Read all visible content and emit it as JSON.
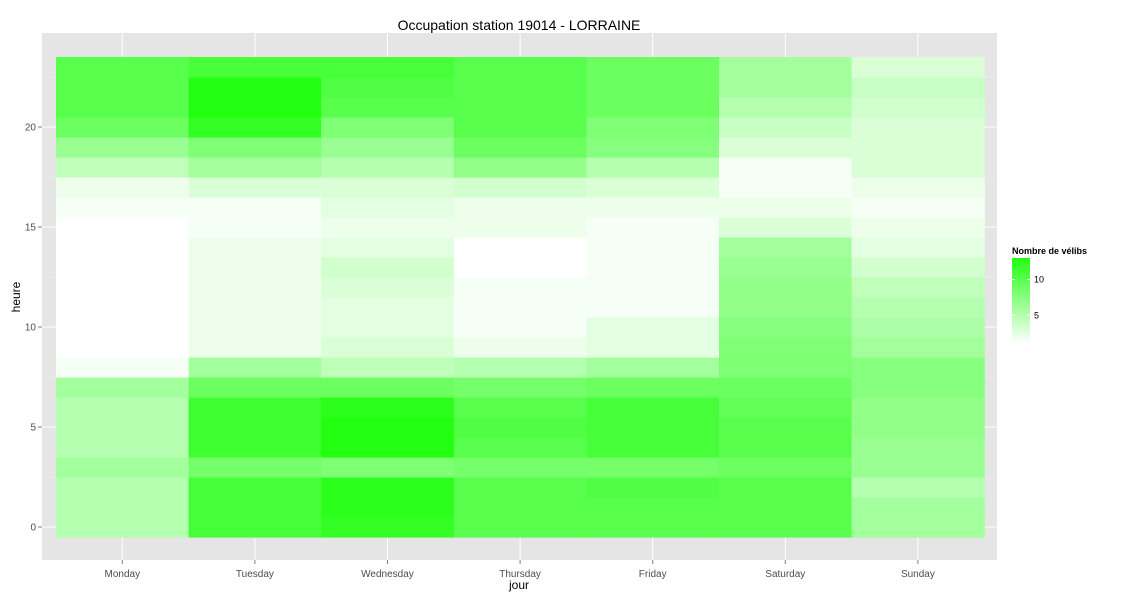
{
  "chart_data": {
    "type": "heatmap",
    "title": "Occupation station 19014 - LORRAINE",
    "xlabel": "jour",
    "ylabel": "heure",
    "x_categories": [
      "Monday",
      "Tuesday",
      "Wednesday",
      "Thursday",
      "Friday",
      "Saturday",
      "Sunday"
    ],
    "y_hours": [
      0,
      1,
      2,
      3,
      4,
      5,
      6,
      7,
      8,
      9,
      10,
      11,
      12,
      13,
      14,
      15,
      16,
      17,
      18,
      19,
      20,
      21,
      22,
      23
    ],
    "ylim": [
      -0.5,
      23.5
    ],
    "y_ticks": [
      0,
      5,
      10,
      15,
      20
    ],
    "grid": true,
    "legend": {
      "title": "Nombre de vélibs",
      "position": "right",
      "ticks": [
        5,
        10
      ],
      "range": [
        1,
        13
      ],
      "low_color": "#ffffff",
      "high_color": "#22ff11"
    },
    "values": {
      "Monday": [
        5,
        5,
        5,
        6,
        5,
        5,
        5,
        6,
        1.5,
        0.5,
        0.5,
        0.5,
        1,
        1,
        0.5,
        0.5,
        1.5,
        2,
        4.5,
        6.5,
        9,
        10,
        10,
        10
      ],
      "Tuesday": [
        11,
        11,
        11,
        8.5,
        11.5,
        11.5,
        11.5,
        9,
        6,
        2,
        2,
        2,
        2,
        2,
        2,
        1.5,
        1.5,
        3,
        6,
        8,
        12,
        13,
        13,
        11
      ],
      "Wednesday": [
        12,
        12.5,
        12.5,
        8,
        13,
        13.5,
        12.5,
        9,
        4.5,
        3,
        2.5,
        2.5,
        3,
        3.5,
        2.5,
        2,
        2.5,
        3,
        5,
        6.5,
        8,
        10,
        10.5,
        11
      ],
      "Thursday": [
        10,
        10,
        10,
        8.5,
        10,
        10.5,
        10,
        8.5,
        5,
        2,
        1.5,
        1.5,
        1.5,
        1,
        1,
        2,
        2,
        3.5,
        7,
        9,
        10,
        10,
        10,
        10
      ],
      "Friday": [
        10,
        10,
        10.5,
        8.5,
        11,
        11,
        11,
        9,
        6,
        2.5,
        2.5,
        1.5,
        1.5,
        1.5,
        1.5,
        1.5,
        2,
        3,
        5,
        7.5,
        8,
        9,
        9,
        9
      ],
      "Saturday": [
        10,
        10,
        10,
        9,
        10,
        10,
        9.5,
        9,
        8,
        8,
        7.5,
        7,
        7,
        6.5,
        6,
        3,
        2,
        1.5,
        1.5,
        3,
        4,
        5,
        6,
        6
      ],
      "Sunday": [
        6,
        6,
        5,
        6.5,
        6.5,
        7,
        7,
        7.5,
        7.5,
        6,
        5.5,
        5,
        4.5,
        3.5,
        2.5,
        2,
        1.5,
        2,
        3,
        3,
        3,
        3.5,
        4,
        3
      ]
    }
  }
}
